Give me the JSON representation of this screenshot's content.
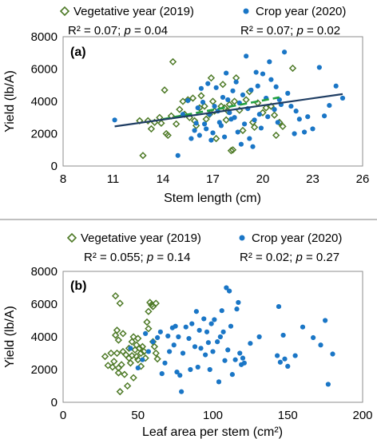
{
  "chart_data": [
    {
      "type": "scatter",
      "panel_label": "(a)",
      "xlabel": "Stem length (cm)",
      "ylabel": "Yield (lb/A)",
      "xlim": [
        8,
        26
      ],
      "ylim": [
        0,
        8000
      ],
      "xticks": [
        "8",
        "11",
        "14",
        "17",
        "20",
        "23",
        "26"
      ],
      "yticks": [
        "0",
        "2000",
        "4000",
        "6000",
        "8000"
      ],
      "grid": false,
      "legend_position": "top",
      "series": [
        {
          "name": "Vegetative year (2019)",
          "marker": "open-diamond",
          "color": "#4e7a27",
          "stats": {
            "r2_text": "R² = 0.07;",
            "p_label": "p",
            "p_text": " = 0.04"
          },
          "trendline": {
            "style": "dashed",
            "color": "#22a040",
            "x": [
              14.0,
              21.0
            ],
            "y": [
              2900,
              4250
            ]
          },
          "points": [
            [
              12.6,
              2800
            ],
            [
              12.8,
              650
            ],
            [
              13.1,
              2800
            ],
            [
              13.3,
              2300
            ],
            [
              13.5,
              2700
            ],
            [
              13.8,
              3000
            ],
            [
              13.9,
              2650
            ],
            [
              14.1,
              4700
            ],
            [
              14.2,
              2000
            ],
            [
              14.3,
              1900
            ],
            [
              14.5,
              3100
            ],
            [
              14.6,
              6450
            ],
            [
              14.8,
              2600
            ],
            [
              15.0,
              3500
            ],
            [
              15.2,
              4000
            ],
            [
              15.3,
              3200
            ],
            [
              15.5,
              4100
            ],
            [
              15.6,
              3000
            ],
            [
              15.8,
              4200
            ],
            [
              15.9,
              2800
            ],
            [
              16.0,
              2500
            ],
            [
              16.2,
              3600
            ],
            [
              16.3,
              4350
            ],
            [
              16.5,
              3700
            ],
            [
              16.6,
              2900
            ],
            [
              16.8,
              3200
            ],
            [
              16.9,
              5450
            ],
            [
              17.0,
              4000
            ],
            [
              17.1,
              3400
            ],
            [
              17.2,
              1700
            ],
            [
              17.5,
              3700
            ],
            [
              17.6,
              5050
            ],
            [
              17.7,
              3600
            ],
            [
              17.8,
              2850
            ],
            [
              17.9,
              3400
            ],
            [
              18.0,
              3800
            ],
            [
              18.1,
              950
            ],
            [
              18.2,
              1000
            ],
            [
              18.3,
              4000
            ],
            [
              18.4,
              5450
            ],
            [
              18.6,
              3450
            ],
            [
              18.8,
              2200
            ],
            [
              19.0,
              4100
            ],
            [
              19.2,
              4600
            ],
            [
              19.4,
              2700
            ],
            [
              19.5,
              2400
            ],
            [
              19.7,
              3900
            ],
            [
              20.0,
              3300
            ],
            [
              20.2,
              3600
            ],
            [
              20.5,
              3700
            ],
            [
              20.7,
              3150
            ],
            [
              20.8,
              1900
            ],
            [
              21.0,
              2700
            ],
            [
              21.2,
              2450
            ],
            [
              21.8,
              6050
            ]
          ]
        },
        {
          "name": "Crop year (2020)",
          "marker": "filled-circle",
          "color": "#1a76c6",
          "stats": {
            "r2_text": "R² = 0.07;",
            "p_label": "p",
            "p_text": " = 0.02"
          },
          "trendline": {
            "style": "solid",
            "color": "#1f3d63",
            "x": [
              11.1,
              24.8
            ],
            "y": [
              2450,
              4450
            ]
          },
          "points": [
            [
              11.1,
              2850
            ],
            [
              14.9,
              650
            ],
            [
              15.2,
              3200
            ],
            [
              15.5,
              4050
            ],
            [
              15.7,
              1700
            ],
            [
              15.9,
              2200
            ],
            [
              16.0,
              2650
            ],
            [
              16.1,
              3600
            ],
            [
              16.2,
              1900
            ],
            [
              16.3,
              4800
            ],
            [
              16.4,
              3950
            ],
            [
              16.5,
              2600
            ],
            [
              16.6,
              2300
            ],
            [
              16.7,
              5100
            ],
            [
              16.8,
              3200
            ],
            [
              16.9,
              1600
            ],
            [
              17.0,
              2050
            ],
            [
              17.1,
              3700
            ],
            [
              17.2,
              4850
            ],
            [
              17.3,
              3400
            ],
            [
              17.4,
              2700
            ],
            [
              17.5,
              2500
            ],
            [
              17.6,
              4250
            ],
            [
              17.7,
              1800
            ],
            [
              17.8,
              5750
            ],
            [
              17.9,
              4100
            ],
            [
              18.0,
              3300
            ],
            [
              18.1,
              2900
            ],
            [
              18.2,
              4650
            ],
            [
              18.3,
              3000
            ],
            [
              18.4,
              5200
            ],
            [
              18.5,
              2100
            ],
            [
              18.6,
              3900
            ],
            [
              18.7,
              1350
            ],
            [
              18.8,
              4400
            ],
            [
              18.9,
              2600
            ],
            [
              19.0,
              6800
            ],
            [
              19.1,
              3550
            ],
            [
              19.2,
              1700
            ],
            [
              19.3,
              4700
            ],
            [
              19.4,
              1200
            ],
            [
              19.5,
              2850
            ],
            [
              19.6,
              5800
            ],
            [
              19.7,
              4950
            ],
            [
              19.8,
              3200
            ],
            [
              19.9,
              2350
            ],
            [
              20.0,
              5700
            ],
            [
              20.2,
              4200
            ],
            [
              20.3,
              3050
            ],
            [
              20.4,
              6450
            ],
            [
              20.5,
              5350
            ],
            [
              20.7,
              3500
            ],
            [
              20.8,
              4900
            ],
            [
              20.9,
              2700
            ],
            [
              21.0,
              4100
            ],
            [
              21.1,
              3800
            ],
            [
              21.3,
              7050
            ],
            [
              21.5,
              4500
            ],
            [
              21.7,
              3700
            ],
            [
              21.9,
              2000
            ],
            [
              22.0,
              3400
            ],
            [
              22.2,
              2900
            ],
            [
              22.5,
              2100
            ],
            [
              22.7,
              3050
            ],
            [
              23.0,
              2300
            ],
            [
              23.4,
              6100
            ],
            [
              23.7,
              3100
            ],
            [
              24.0,
              3750
            ],
            [
              24.4,
              4950
            ],
            [
              24.8,
              4200
            ]
          ]
        }
      ]
    },
    {
      "type": "scatter",
      "panel_label": "(b)",
      "xlabel": "Leaf area per stem (cm²)",
      "ylabel": "Yield (lb/A)",
      "xlim": [
        0,
        200
      ],
      "ylim": [
        0,
        8000
      ],
      "xticks": [
        "0",
        "50",
        "100",
        "150",
        "200"
      ],
      "yticks": [
        "0",
        "2000",
        "4000",
        "6000",
        "8000"
      ],
      "grid": false,
      "legend_position": "top",
      "series": [
        {
          "name": "Vegetative year (2019)",
          "marker": "open-diamond",
          "color": "#4e7a27",
          "stats": {
            "r2_text": "R² = 0.055;",
            "p_label": "p",
            "p_text": " = 0.14"
          },
          "points": [
            [
              28,
              2800
            ],
            [
              30,
              2250
            ],
            [
              32,
              3000
            ],
            [
              33,
              2150
            ],
            [
              34,
              2500
            ],
            [
              35,
              4100
            ],
            [
              35,
              6500
            ],
            [
              36,
              3000
            ],
            [
              36,
              4400
            ],
            [
              37,
              1800
            ],
            [
              37,
              2100
            ],
            [
              37,
              3800
            ],
            [
              38,
              650
            ],
            [
              38,
              6050
            ],
            [
              39,
              2300
            ],
            [
              40,
              4200
            ],
            [
              40,
              3100
            ],
            [
              41,
              1700
            ],
            [
              42,
              2900
            ],
            [
              43,
              1000
            ],
            [
              44,
              2700
            ],
            [
              44,
              3300
            ],
            [
              45,
              2400
            ],
            [
              46,
              2850
            ],
            [
              46,
              3700
            ],
            [
              47,
              1500
            ],
            [
              47,
              4000
            ],
            [
              48,
              3200
            ],
            [
              49,
              2800
            ],
            [
              49,
              3500
            ],
            [
              50,
              2600
            ],
            [
              50,
              3900
            ],
            [
              51,
              3300
            ],
            [
              52,
              2200
            ],
            [
              52,
              3000
            ],
            [
              53,
              3400
            ],
            [
              54,
              3100
            ],
            [
              55,
              2700
            ],
            [
              56,
              4900
            ],
            [
              57,
              5550
            ],
            [
              57,
              4500
            ],
            [
              58,
              6100
            ],
            [
              59,
              5950
            ],
            [
              60,
              3700
            ],
            [
              60,
              5850
            ],
            [
              61,
              3400
            ],
            [
              62,
              6050
            ],
            [
              62,
              3000
            ],
            [
              63,
              2650
            ]
          ]
        },
        {
          "name": "Crop year (2020)",
          "marker": "filled-circle",
          "color": "#1a76c6",
          "stats": {
            "r2_text": "R² = 0.02;",
            "p_label": "p",
            "p_text": " = 0.27"
          },
          "points": [
            [
              45,
              3300
            ],
            [
              50,
              2100
            ],
            [
              53,
              2600
            ],
            [
              55,
              4200
            ],
            [
              57,
              3100
            ],
            [
              60,
              3700
            ],
            [
              63,
              3950
            ],
            [
              65,
              4300
            ],
            [
              66,
              1750
            ],
            [
              68,
              2400
            ],
            [
              70,
              4050
            ],
            [
              71,
              3100
            ],
            [
              73,
              4550
            ],
            [
              74,
              3500
            ],
            [
              75,
              4650
            ],
            [
              76,
              1850
            ],
            [
              77,
              4000
            ],
            [
              78,
              1650
            ],
            [
              79,
              650
            ],
            [
              80,
              3000
            ],
            [
              82,
              4600
            ],
            [
              84,
              3900
            ],
            [
              85,
              2000
            ],
            [
              86,
              4800
            ],
            [
              88,
              3400
            ],
            [
              89,
              5550
            ],
            [
              90,
              2150
            ],
            [
              91,
              4400
            ],
            [
              92,
              3300
            ],
            [
              94,
              5100
            ],
            [
              95,
              2900
            ],
            [
              96,
              4300
            ],
            [
              97,
              3650
            ],
            [
              98,
              2000
            ],
            [
              99,
              4800
            ],
            [
              100,
              3100
            ],
            [
              101,
              5050
            ],
            [
              103,
              3700
            ],
            [
              104,
              1250
            ],
            [
              105,
              4000
            ],
            [
              106,
              5600
            ],
            [
              107,
              4300
            ],
            [
              108,
              2550
            ],
            [
              109,
              7000
            ],
            [
              110,
              3200
            ],
            [
              111,
              6800
            ],
            [
              112,
              4650
            ],
            [
              113,
              1700
            ],
            [
              115,
              2600
            ],
            [
              116,
              5700
            ],
            [
              117,
              6100
            ],
            [
              118,
              3000
            ],
            [
              119,
              2300
            ],
            [
              120,
              2700
            ],
            [
              121,
              2400
            ],
            [
              125,
              3600
            ],
            [
              131,
              4000
            ],
            [
              143,
              2850
            ],
            [
              144,
              5850
            ],
            [
              145,
              2450
            ],
            [
              147,
              4100
            ],
            [
              148,
              2650
            ],
            [
              150,
              2200
            ],
            [
              155,
              2850
            ],
            [
              160,
              4600
            ],
            [
              167,
              3950
            ],
            [
              172,
              3500
            ],
            [
              175,
              5000
            ],
            [
              177,
              1100
            ],
            [
              180,
              2950
            ]
          ]
        }
      ]
    }
  ]
}
